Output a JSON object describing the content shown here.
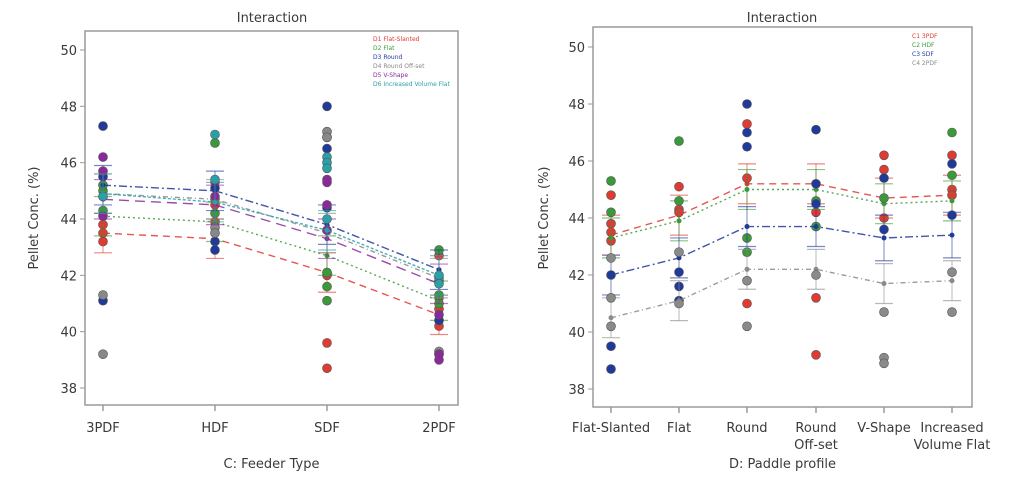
{
  "chart_data": [
    {
      "type": "line",
      "title": "Interaction",
      "xlabel": "C: Feeder Type",
      "ylabel": "Pellet Conc. (%)",
      "categories": [
        "3PDF",
        "HDF",
        "SDF",
        "2PDF"
      ],
      "ylim": [
        37.5,
        50.5
      ],
      "yticks": [
        38,
        40,
        42,
        44,
        46,
        48,
        50
      ],
      "grid": false,
      "legend_position": "top-right",
      "series": [
        {
          "name": "D1 Flat-Slanted",
          "color": "#e03a32",
          "dash": "dash",
          "values": [
            43.5,
            43.3,
            42.1,
            40.6
          ],
          "ci": [
            [
              42.8,
              44.2
            ],
            [
              42.6,
              44.0
            ],
            [
              41.4,
              42.8
            ],
            [
              39.9,
              41.3
            ]
          ],
          "points": [
            [
              43.2,
              43.5,
              43.8,
              44.8
            ],
            [
              44.5,
              45.3,
              43.9
            ],
            [
              39.6,
              38.7,
              42.1,
              42.0
            ],
            [
              40.2,
              40.4,
              40.8,
              41.2,
              42.7
            ]
          ]
        },
        {
          "name": "D2 Flat",
          "color": "#3a9a3a",
          "dash": "dot",
          "values": [
            44.1,
            43.9,
            42.7,
            41.1
          ],
          "ci": [
            [
              43.4,
              44.8
            ],
            [
              43.2,
              44.6
            ],
            [
              42.0,
              43.4
            ],
            [
              40.4,
              41.8
            ]
          ],
          "points": [
            [
              44.3,
              45.0,
              45.2
            ],
            [
              46.7,
              44.7,
              44.2
            ],
            [
              41.6,
              41.1,
              42.1
            ],
            [
              41.3,
              42.9,
              41.0
            ]
          ]
        },
        {
          "name": "D3 Round",
          "color": "#1f3a9a",
          "dash": "dashdot",
          "values": [
            45.2,
            45.0,
            43.8,
            42.2
          ],
          "ci": [
            [
              44.5,
              45.9
            ],
            [
              44.3,
              45.7
            ],
            [
              43.1,
              44.5
            ],
            [
              41.5,
              42.9
            ]
          ],
          "points": [
            [
              47.3,
              45.5,
              41.1
            ],
            [
              45.1,
              43.2,
              42.9
            ],
            [
              48.0,
              46.5,
              46.9,
              44.4
            ],
            [
              41.8,
              40.4
            ]
          ]
        },
        {
          "name": "D4 Round Off-set",
          "color": "#888888",
          "dash": "dashdot2",
          "values": [
            44.9,
            44.7,
            43.5,
            41.9
          ],
          "ci": [
            [
              44.2,
              45.6
            ],
            [
              44.0,
              45.4
            ],
            [
              42.8,
              44.2
            ],
            [
              41.2,
              42.6
            ]
          ],
          "points": [
            [
              41.3,
              39.2
            ],
            [
              43.7,
              43.5
            ],
            [
              47.1,
              46.9
            ],
            [
              39.3,
              39.2
            ]
          ]
        },
        {
          "name": "D5 V-Shape",
          "color": "#8a2a9a",
          "dash": "longdash",
          "values": [
            44.7,
            44.5,
            43.3,
            41.7
          ],
          "ci": [
            [
              44.0,
              45.4
            ],
            [
              43.8,
              45.2
            ],
            [
              42.6,
              44.0
            ],
            [
              41.0,
              42.4
            ]
          ],
          "points": [
            [
              46.2,
              45.7,
              44.1
            ],
            [
              44.8
            ],
            [
              45.4,
              45.3,
              44.5,
              43.6
            ],
            [
              39.2,
              39.0,
              40.6
            ]
          ]
        },
        {
          "name": "D6 Increased Volume Flat",
          "color": "#2aa0a8",
          "dash": "dot2",
          "values": [
            44.9,
            44.6,
            43.6,
            42.0
          ],
          "ci": [
            [
              44.2,
              45.6
            ],
            [
              43.9,
              45.3
            ],
            [
              42.9,
              44.3
            ],
            [
              41.3,
              42.7
            ]
          ],
          "points": [
            [
              44.8
            ],
            [
              47.0,
              45.4
            ],
            [
              46.2,
              46.0,
              45.8,
              44.0
            ],
            [
              41.9,
              42.0,
              41.7
            ]
          ]
        }
      ]
    },
    {
      "type": "line",
      "title": "Interaction",
      "xlabel": "D: Paddle profile",
      "ylabel": "Pellet Conc. (%)",
      "categories": [
        "Flat-Slanted",
        "Flat",
        "Round",
        "Round Off-set",
        "V-Shape",
        "Increased Volume Flat"
      ],
      "ylim": [
        37.5,
        50.5
      ],
      "yticks": [
        38,
        40,
        42,
        44,
        46,
        48,
        50
      ],
      "grid": false,
      "legend_position": "top-right",
      "series": [
        {
          "name": "C1 3PDF",
          "color": "#e03a32",
          "dash": "dash",
          "values": [
            43.4,
            44.1,
            45.2,
            45.2,
            44.7,
            44.8
          ],
          "ci": [
            [
              42.7,
              44.1
            ],
            [
              43.4,
              44.8
            ],
            [
              44.5,
              45.9
            ],
            [
              44.5,
              45.9
            ],
            [
              44.0,
              45.4
            ],
            [
              44.1,
              45.5
            ]
          ],
          "points": [
            [
              44.8,
              43.8,
              43.5,
              43.2
            ],
            [
              45.1,
              44.3,
              44.2
            ],
            [
              47.3,
              45.4,
              41.0
            ],
            [
              44.2,
              41.2,
              39.2
            ],
            [
              46.2,
              45.7,
              44.0
            ],
            [
              46.2,
              45.0,
              44.8
            ]
          ]
        },
        {
          "name": "C2 HDF",
          "color": "#3a9a3a",
          "dash": "dot",
          "values": [
            43.3,
            43.9,
            45.0,
            45.0,
            44.5,
            44.6
          ],
          "ci": [
            [
              42.6,
              44.0
            ],
            [
              43.2,
              44.6
            ],
            [
              44.3,
              45.7
            ],
            [
              44.3,
              45.7
            ],
            [
              43.8,
              45.2
            ],
            [
              43.9,
              45.3
            ]
          ],
          "points": [
            [
              45.3,
              44.2
            ],
            [
              46.7,
              44.6
            ],
            [
              43.3,
              42.8
            ],
            [
              43.7,
              44.6
            ],
            [
              44.7
            ],
            [
              47.0,
              45.5
            ]
          ]
        },
        {
          "name": "C3 SDF",
          "color": "#1f3a9a",
          "dash": "dashdot",
          "values": [
            42.0,
            42.6,
            43.7,
            43.7,
            43.3,
            43.4
          ],
          "ci": [
            [
              41.3,
              42.7
            ],
            [
              41.9,
              43.3
            ],
            [
              43.0,
              44.4
            ],
            [
              43.0,
              44.4
            ],
            [
              42.5,
              44.1
            ],
            [
              42.6,
              44.2
            ]
          ],
          "points": [
            [
              42.0,
              39.5,
              38.7
            ],
            [
              42.1,
              41.6,
              41.1
            ],
            [
              48.0,
              47.0,
              46.5
            ],
            [
              47.1,
              45.2,
              44.5
            ],
            [
              45.4,
              43.6
            ],
            [
              45.9,
              44.1
            ]
          ]
        },
        {
          "name": "C4 2PDF",
          "color": "#8a8a8a",
          "dash": "dashdot2",
          "values": [
            40.5,
            41.1,
            42.2,
            42.2,
            41.7,
            41.8
          ],
          "ci": [
            [
              39.8,
              41.2
            ],
            [
              40.4,
              41.8
            ],
            [
              41.5,
              42.9
            ],
            [
              41.5,
              42.9
            ],
            [
              41.0,
              42.4
            ],
            [
              41.1,
              42.5
            ]
          ],
          "points": [
            [
              42.6,
              41.2,
              40.2
            ],
            [
              42.8,
              41.0
            ],
            [
              41.8,
              40.2
            ],
            [
              42.0
            ],
            [
              40.7,
              39.1,
              38.9
            ],
            [
              42.1,
              40.7
            ]
          ]
        }
      ]
    }
  ]
}
